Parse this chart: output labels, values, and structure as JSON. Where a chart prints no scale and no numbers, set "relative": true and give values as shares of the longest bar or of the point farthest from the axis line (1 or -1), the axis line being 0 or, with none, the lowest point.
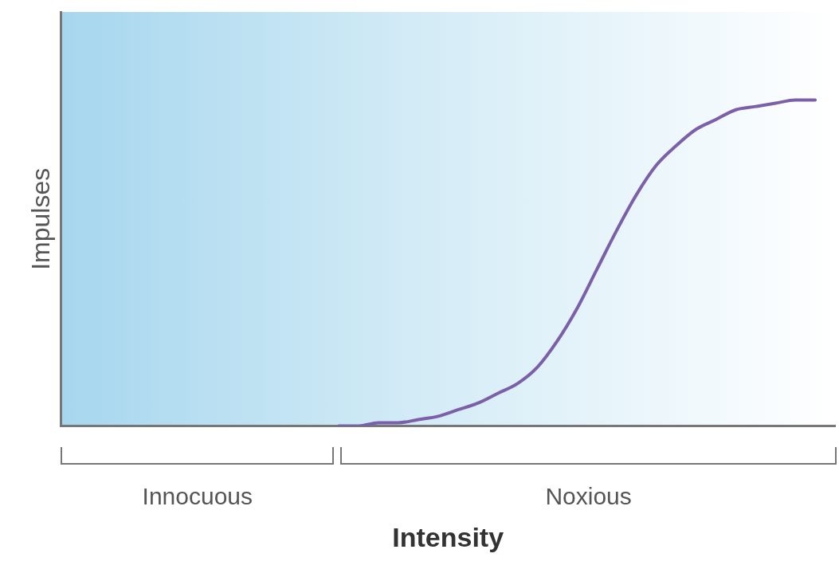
{
  "chart_data": {
    "type": "line",
    "relative": true,
    "ylabel": "Impulses",
    "xlabel": "Intensity",
    "categories": [
      null,
      null,
      null,
      null,
      null,
      null,
      null,
      null,
      null,
      null,
      null,
      null,
      null,
      null,
      null,
      null,
      null,
      null,
      null,
      null,
      null,
      null,
      null,
      null,
      null,
      null,
      null,
      null,
      null,
      null,
      null,
      null,
      null,
      null,
      null,
      null,
      null,
      null,
      null,
      null
    ],
    "series": [
      {
        "color": "#7b5fa8",
        "values": [
          null,
          null,
          null,
          null,
          null,
          null,
          null,
          null,
          null,
          null,
          null,
          null,
          null,
          null,
          0,
          0,
          0.01,
          0.01,
          0.02,
          0.03,
          0.05,
          0.07,
          0.1,
          0.13,
          0.18,
          0.26,
          0.36,
          0.48,
          0.6,
          0.71,
          0.8,
          0.86,
          0.91,
          0.94,
          0.97,
          0.98,
          0.99,
          1,
          1,
          null
        ]
      }
    ],
    "annotations": [
      "Innocuous",
      "Noxious"
    ],
    "grid": false,
    "legend": false,
    "marker": "none",
    "line_style": "solid"
  }
}
